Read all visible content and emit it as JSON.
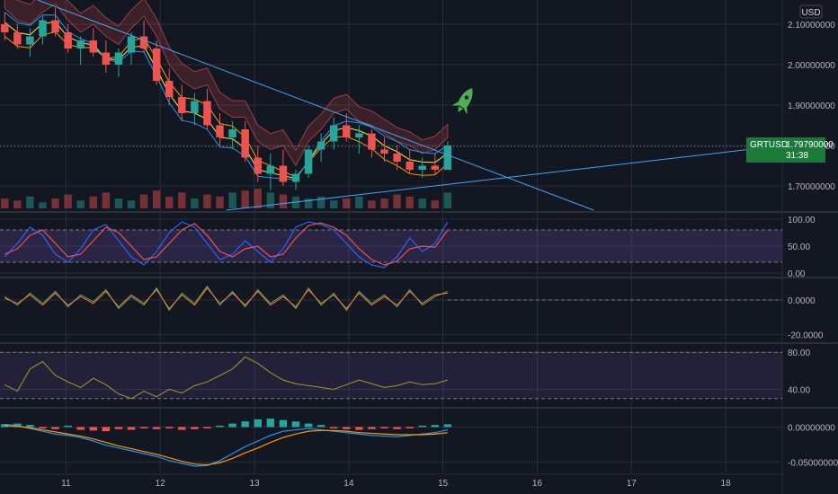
{
  "currency": "USD",
  "symbol": "GRTUSD",
  "last_price": "1.79790000",
  "countdown": "31:38",
  "colors": {
    "background": "#131722",
    "up": "#26a69a",
    "down": "#ef5350",
    "grid": "#2a2e39",
    "text": "#b2b5be",
    "badge": "#1b7a3a",
    "rocket": "#4caf50",
    "stoch_k": "#2962ff",
    "stoch_d": "#ef5350",
    "osc_green": "#4caf50",
    "osc_orange": "#ff7043",
    "rsi": "#9e9d24",
    "macd": "#2196f3",
    "signal": "#ff9800",
    "trend": "#42a5f5"
  },
  "rocket_icon": "rocket-icon",
  "chart_data": [
    {
      "type": "candlestick",
      "name": "main",
      "y_ticks": [
        "2.10000000",
        "2.00000000",
        "1.90000000",
        "1.80000000",
        "1.70000000"
      ],
      "x_ticks": [
        "11",
        "12",
        "13",
        "14",
        "15",
        "16",
        "17",
        "18"
      ],
      "ylim": [
        1.64,
        2.16
      ],
      "xlim": [
        10.3,
        18.6
      ],
      "ohlc": [
        [
          2.1,
          2.13,
          2.06,
          2.08
        ],
        [
          2.08,
          2.1,
          2.04,
          2.05
        ],
        [
          2.05,
          2.09,
          2.02,
          2.07
        ],
        [
          2.07,
          2.12,
          2.05,
          2.11
        ],
        [
          2.11,
          2.14,
          2.07,
          2.08
        ],
        [
          2.08,
          2.1,
          2.03,
          2.04
        ],
        [
          2.04,
          2.07,
          2.0,
          2.06
        ],
        [
          2.06,
          2.09,
          2.02,
          2.03
        ],
        [
          2.03,
          2.06,
          1.98,
          2.0
        ],
        [
          2.0,
          2.04,
          1.97,
          2.03
        ],
        [
          2.03,
          2.08,
          2.0,
          2.07
        ],
        [
          2.07,
          2.11,
          2.03,
          2.04
        ],
        [
          2.04,
          2.06,
          1.95,
          1.96
        ],
        [
          1.96,
          1.99,
          1.9,
          1.92
        ],
        [
          1.92,
          1.95,
          1.86,
          1.88
        ],
        [
          1.88,
          1.93,
          1.85,
          1.91
        ],
        [
          1.91,
          1.94,
          1.84,
          1.85
        ],
        [
          1.85,
          1.88,
          1.8,
          1.82
        ],
        [
          1.82,
          1.86,
          1.79,
          1.84
        ],
        [
          1.84,
          1.86,
          1.76,
          1.77
        ],
        [
          1.77,
          1.8,
          1.71,
          1.73
        ],
        [
          1.73,
          1.78,
          1.69,
          1.75
        ],
        [
          1.75,
          1.79,
          1.7,
          1.71
        ],
        [
          1.71,
          1.74,
          1.69,
          1.73
        ],
        [
          1.73,
          1.8,
          1.72,
          1.79
        ],
        [
          1.79,
          1.83,
          1.76,
          1.81
        ],
        [
          1.81,
          1.87,
          1.79,
          1.85
        ],
        [
          1.85,
          1.88,
          1.81,
          1.82
        ],
        [
          1.82,
          1.85,
          1.78,
          1.83
        ],
        [
          1.83,
          1.84,
          1.77,
          1.79
        ],
        [
          1.79,
          1.82,
          1.76,
          1.78
        ],
        [
          1.78,
          1.8,
          1.74,
          1.76
        ],
        [
          1.76,
          1.79,
          1.73,
          1.74
        ],
        [
          1.74,
          1.77,
          1.72,
          1.75
        ],
        [
          1.75,
          1.78,
          1.73,
          1.74
        ],
        [
          1.74,
          1.81,
          1.74,
          1.8
        ]
      ],
      "projection": {
        "title": "",
        "values": []
      },
      "volume": [
        5,
        4,
        6,
        3,
        5,
        7,
        4,
        6,
        8,
        5,
        4,
        7,
        9,
        6,
        8,
        5,
        7,
        6,
        8,
        9,
        10,
        8,
        7,
        6,
        5,
        6,
        4,
        5,
        6,
        4,
        5,
        7,
        6,
        5,
        4,
        8
      ]
    },
    {
      "type": "line",
      "name": "stochastic",
      "y_ticks": [
        "100.00",
        "50.00",
        "0.00"
      ],
      "ylim": [
        -5,
        110
      ],
      "series": [
        {
          "values": [
            30,
            55,
            85,
            70,
            35,
            20,
            45,
            80,
            90,
            60,
            30,
            15,
            40,
            75,
            95,
            85,
            55,
            25,
            35,
            60,
            40,
            20,
            45,
            85,
            95,
            90,
            80,
            55,
            30,
            15,
            10,
            30,
            65,
            40,
            55,
            95
          ]
        },
        {
          "values": [
            35,
            45,
            70,
            80,
            55,
            30,
            35,
            60,
            85,
            75,
            50,
            25,
            30,
            55,
            80,
            92,
            70,
            40,
            30,
            45,
            50,
            30,
            35,
            65,
            88,
            93,
            85,
            70,
            45,
            25,
            15,
            22,
            45,
            50,
            48,
            80
          ]
        }
      ]
    },
    {
      "type": "line",
      "name": "oscillator",
      "y_ticks": [
        "0.0000",
        "-20.0000"
      ],
      "ylim": [
        -24,
        12
      ],
      "series": [
        {
          "values": [
            2,
            -3,
            4,
            -2,
            5,
            -4,
            3,
            -1,
            6,
            -5,
            2,
            -3,
            7,
            -6,
            4,
            -2,
            8,
            -3,
            5,
            -4,
            6,
            -2,
            3,
            -5,
            7,
            -3,
            4,
            -6,
            5,
            -2,
            3,
            -4,
            6,
            -3,
            2,
            5
          ]
        },
        {
          "values": [
            1,
            -2,
            3,
            -3,
            4,
            -3,
            2,
            -2,
            5,
            -4,
            3,
            -2,
            6,
            -5,
            3,
            -3,
            7,
            -2,
            4,
            -3,
            5,
            -3,
            2,
            -4,
            6,
            -2,
            3,
            -5,
            4,
            -3,
            2,
            -3,
            5,
            -2,
            3,
            4
          ]
        }
      ]
    },
    {
      "type": "line",
      "name": "rsi",
      "y_ticks": [
        "80.00",
        "40.00"
      ],
      "ylim": [
        22,
        88
      ],
      "series": [
        {
          "values": [
            45,
            38,
            62,
            70,
            55,
            48,
            42,
            52,
            45,
            35,
            30,
            38,
            32,
            40,
            36,
            44,
            48,
            55,
            62,
            75,
            68,
            58,
            50,
            46,
            44,
            42,
            40,
            45,
            50,
            46,
            42,
            44,
            48,
            45,
            46,
            50
          ]
        }
      ]
    },
    {
      "type": "bar",
      "name": "macd",
      "y_ticks": [
        "0.00000000",
        "-0.05000000"
      ],
      "ylim": [
        -0.065,
        0.025
      ],
      "histogram": [
        0.004,
        0.005,
        0.003,
        -0.002,
        -0.003,
        0.002,
        -0.004,
        -0.005,
        -0.006,
        -0.003,
        -0.004,
        -0.002,
        -0.003,
        -0.002,
        -0.004,
        -0.003,
        -0.002,
        0.002,
        0.005,
        0.008,
        0.011,
        0.012,
        0.01,
        0.008,
        0.005,
        0.003,
        -0.002,
        -0.003,
        -0.004,
        -0.003,
        -0.002,
        -0.003,
        -0.002,
        0.002,
        0.003,
        0.004
      ],
      "series": [
        {
          "values": [
            0.004,
            0.002,
            -0.002,
            -0.006,
            -0.01,
            -0.012,
            -0.015,
            -0.02,
            -0.026,
            -0.03,
            -0.034,
            -0.038,
            -0.042,
            -0.048,
            -0.052,
            -0.056,
            -0.055,
            -0.048,
            -0.038,
            -0.028,
            -0.02,
            -0.012,
            -0.006,
            -0.004,
            -0.002,
            -0.004,
            -0.006,
            -0.008,
            -0.01,
            -0.012,
            -0.013,
            -0.014,
            -0.012,
            -0.01,
            -0.008,
            -0.004
          ]
        },
        {
          "values": [
            0.002,
            0.001,
            -0.001,
            -0.004,
            -0.007,
            -0.01,
            -0.013,
            -0.017,
            -0.022,
            -0.027,
            -0.031,
            -0.035,
            -0.039,
            -0.044,
            -0.049,
            -0.053,
            -0.054,
            -0.051,
            -0.045,
            -0.037,
            -0.03,
            -0.022,
            -0.015,
            -0.01,
            -0.006,
            -0.005,
            -0.005,
            -0.006,
            -0.008,
            -0.009,
            -0.01,
            -0.011,
            -0.011,
            -0.011,
            -0.01,
            -0.008
          ]
        }
      ]
    }
  ]
}
